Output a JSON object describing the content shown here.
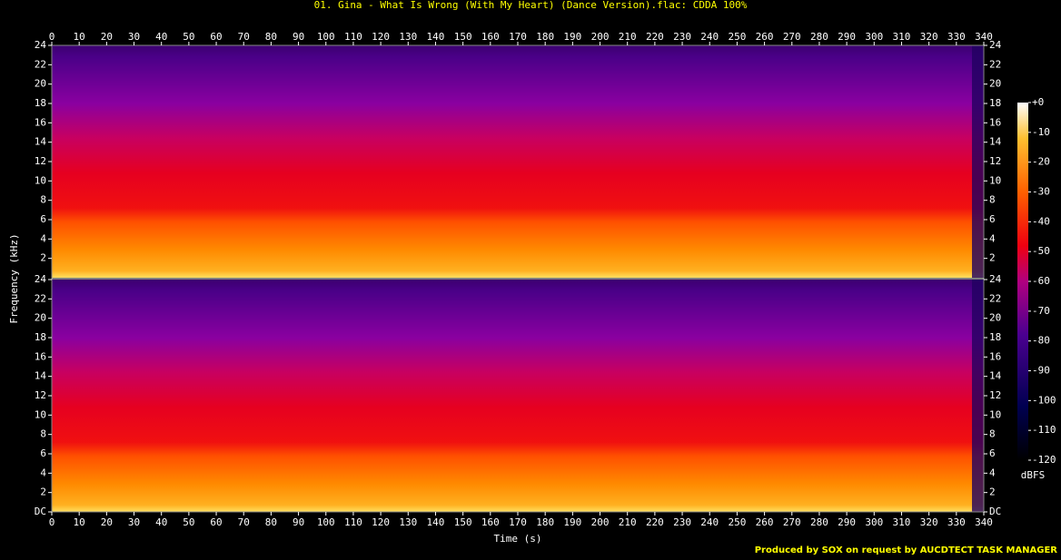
{
  "chart_data": {
    "type": "spectrogram",
    "title": "01. Gina - What Is Wrong (With My Heart) (Dance Version).flac: CDDA 100%",
    "xlabel": "Time (s)",
    "ylabel": "Frequency (kHz)",
    "xlim": [
      0,
      340
    ],
    "xticks": [
      0,
      10,
      20,
      30,
      40,
      50,
      60,
      70,
      80,
      90,
      100,
      110,
      120,
      130,
      140,
      150,
      160,
      170,
      180,
      190,
      200,
      210,
      220,
      230,
      240,
      250,
      260,
      270,
      280,
      290,
      300,
      310,
      320,
      330,
      340
    ],
    "channels": [
      {
        "ylim": [
          0,
          24
        ],
        "yticks": [
          2,
          4,
          6,
          8,
          10,
          12,
          14,
          16,
          18,
          20,
          22,
          24
        ]
      },
      {
        "ylim": [
          0,
          24
        ],
        "yticks": [
          {
            "value": 0,
            "label": "DC"
          },
          2,
          4,
          6,
          8,
          10,
          12,
          14,
          16,
          18,
          20,
          22,
          24
        ]
      }
    ],
    "colorbar": {
      "zlim": [
        -120,
        0
      ],
      "zticks": [
        {
          "value": 0,
          "label": "+0"
        },
        -10,
        -20,
        -30,
        -40,
        -50,
        -60,
        -70,
        -80,
        -90,
        -100,
        -110,
        -120
      ],
      "label": "dBFS"
    },
    "footer": "Produced by SOX on request by AUCDTECT TASK MANAGER"
  }
}
